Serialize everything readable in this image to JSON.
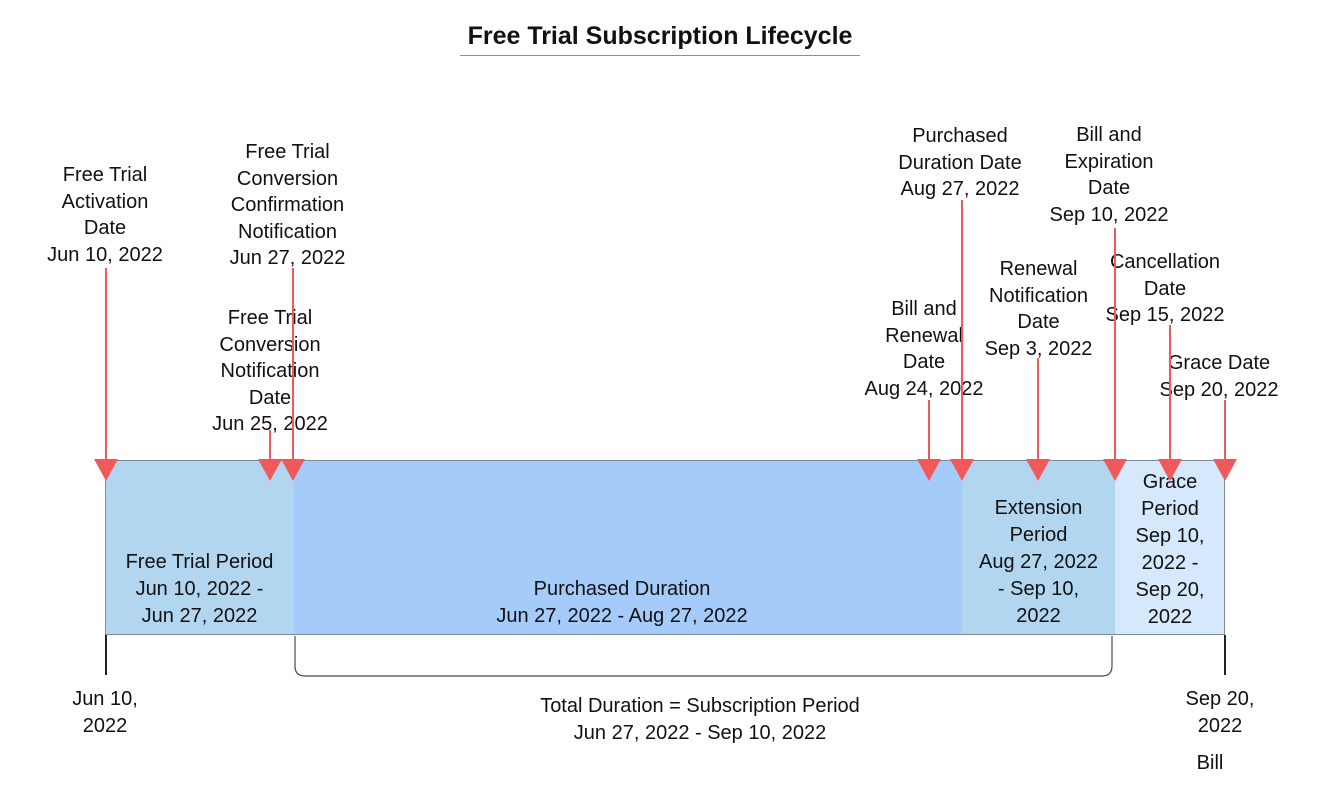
{
  "diagram": {
    "title": "Free Trial Subscription Lifecycle",
    "periods": [
      {
        "label": "Free Trial Period\nJun 10, 2022 -\nJun 27, 2022",
        "color": "#b3d6f0"
      },
      {
        "label": "Purchased Duration\nJun 27, 2022 - Aug 27, 2022",
        "color": "#a5cbfb"
      },
      {
        "label": "Extension\nPeriod\nAug 27, 2022\n- Sep 10,\n2022",
        "color": "#b3d6f0"
      },
      {
        "label": "Grace\nPeriod\nSep 10,\n2022 -\nSep 20,\n2022",
        "color": "#d6e8fc"
      }
    ],
    "milestones": [
      {
        "label": "Free Trial\nActivation\nDate\nJun 10, 2022"
      },
      {
        "label": "Free Trial\nConversion\nNotification\nDate\nJun 25, 2022"
      },
      {
        "label": "Free Trial\nConversion\nConfirmation\nNotification\nJun 27, 2022"
      },
      {
        "label": "Bill and\nRenewal\nDate\nAug 24, 2022"
      },
      {
        "label": "Purchased\nDuration Date\nAug 27, 2022"
      },
      {
        "label": "Renewal\nNotification\nDate\nSep 3, 2022"
      },
      {
        "label": "Bill and\nExpiration\nDate\nSep 10, 2022"
      },
      {
        "label": "Cancellation\nDate\nSep 15, 2022"
      },
      {
        "label": "Grace Date\nSep 20, 2022"
      }
    ],
    "start_label": "Jun 10,\n2022",
    "end_label": "Sep 20,\n2022",
    "end_sublabel": "Bill",
    "total_label": "Total Duration = Subscription Period\nJun 27, 2022 - Sep 10, 2022",
    "marker_color": "#f0595a"
  }
}
